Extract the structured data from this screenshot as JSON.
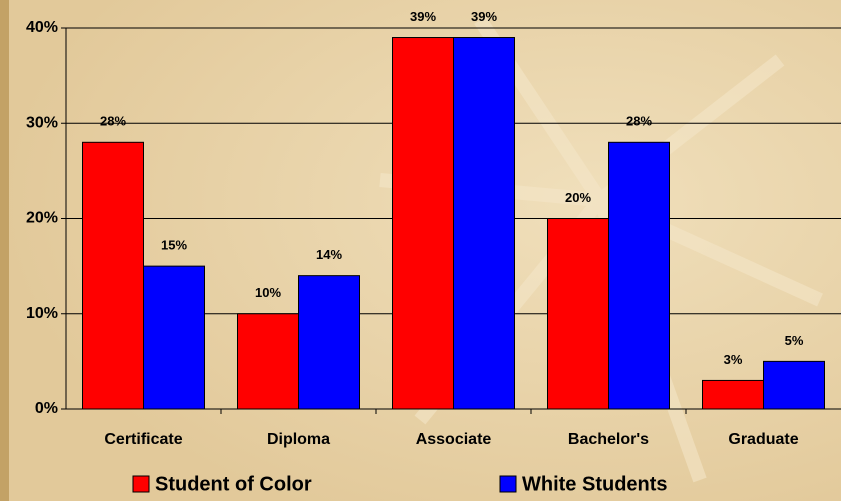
{
  "chart_data": {
    "type": "bar",
    "categories": [
      "Certificate",
      "Diploma",
      "Associate",
      "Bachelor's",
      "Graduate"
    ],
    "series": [
      {
        "name": "Student of Color",
        "color": "#ff0000",
        "values": [
          28,
          10,
          39,
          20,
          3
        ],
        "value_labels": [
          "28%",
          "10%",
          "39%",
          "20%",
          "3%"
        ]
      },
      {
        "name": "White Students",
        "color": "#0000ff",
        "values": [
          15,
          14,
          39,
          28,
          5
        ],
        "value_labels": [
          "15%",
          "14%",
          "39%",
          "28%",
          "5%"
        ]
      }
    ],
    "ylim": [
      0,
      40
    ],
    "yticks": [
      {
        "value": 0,
        "label": "0%"
      },
      {
        "value": 10,
        "label": "10%"
      },
      {
        "value": 20,
        "label": "20%"
      },
      {
        "value": 30,
        "label": "30%"
      },
      {
        "value": 40,
        "label": "40%"
      }
    ],
    "grid": true,
    "legend": "bottom"
  }
}
